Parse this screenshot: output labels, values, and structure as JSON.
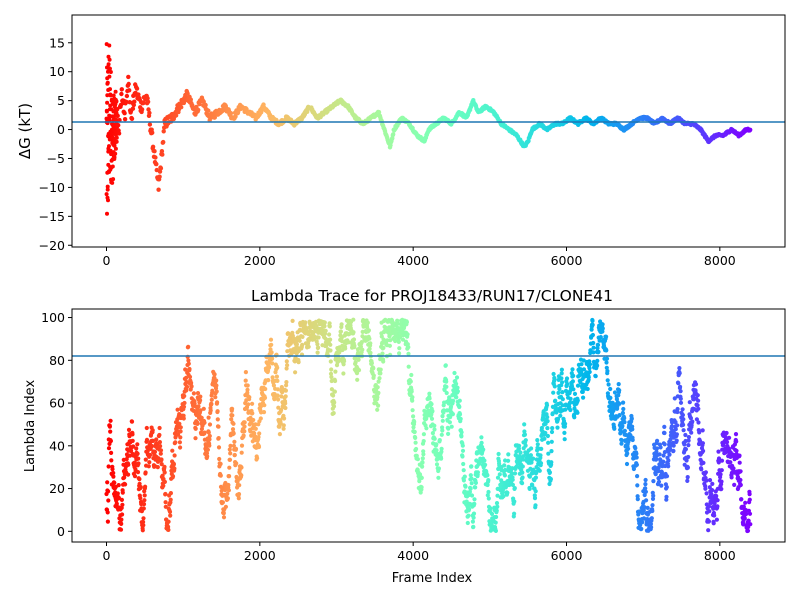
{
  "chart_data": [
    {
      "type": "scatter",
      "title": "",
      "xlabel": "",
      "ylabel": "ΔG (kT)",
      "xlim": [
        -450,
        8850
      ],
      "ylim": [
        -20.3,
        19.8
      ],
      "xticks": [
        0,
        2000,
        4000,
        6000,
        8000
      ],
      "yticks": [
        -20,
        -15,
        -10,
        -5,
        0,
        5,
        10,
        15
      ],
      "xtick_labels": [
        "0",
        "2000",
        "4000",
        "6000",
        "8000"
      ],
      "ytick_labels": [
        "−20",
        "−15",
        "−10",
        "−5",
        "0",
        "5",
        "10",
        "15"
      ],
      "reference_line": 1.3,
      "reference_color": "#1f77b4",
      "colormap": "rainbow (reversed: red at frame 0, violet at last frame)",
      "n_frames": 8400,
      "trace_keypoints": {
        "x": [
          0,
          40,
          80,
          120,
          160,
          200,
          240,
          280,
          320,
          380,
          450,
          520,
          600,
          680,
          760,
          850,
          950,
          1050,
          1150,
          1250,
          1350,
          1450,
          1550,
          1650,
          1750,
          1850,
          1950,
          2050,
          2150,
          2250,
          2350,
          2450,
          2550,
          2650,
          2750,
          2850,
          2950,
          3050,
          3150,
          3250,
          3350,
          3450,
          3550,
          3650,
          3700,
          3750,
          3850,
          3950,
          4050,
          4150,
          4200,
          4300,
          4400,
          4500,
          4600,
          4700,
          4780,
          4850,
          4950,
          5050,
          5150,
          5250,
          5350,
          5450,
          5500,
          5550,
          5650,
          5750,
          5850,
          5950,
          6050,
          6150,
          6250,
          6350,
          6450,
          6550,
          6650,
          6750,
          6850,
          6950,
          7050,
          7150,
          7250,
          7350,
          7450,
          7550,
          7650,
          7750,
          7850,
          7950,
          8050,
          8150,
          8250,
          8350,
          8400
        ],
        "y": [
          -20,
          16,
          -10,
          8,
          0,
          6,
          3,
          9,
          2,
          7,
          4,
          6,
          -2,
          -10,
          1,
          2,
          4,
          6,
          3,
          5,
          2,
          3,
          4,
          2,
          4,
          3,
          2,
          4,
          2,
          1,
          2,
          1,
          2,
          4,
          2,
          3,
          4,
          5,
          4,
          2,
          1,
          2,
          3,
          -1,
          -3,
          0,
          2,
          1,
          -1,
          -2,
          0,
          1,
          2,
          1,
          3,
          2,
          5,
          3,
          4,
          3,
          1,
          0,
          -1,
          -3,
          -2,
          0,
          1,
          0,
          1,
          1,
          2,
          1,
          2,
          1,
          2,
          1,
          1,
          0,
          1,
          2,
          2,
          1,
          2,
          1,
          2,
          1,
          1,
          0,
          -2,
          -1,
          -1,
          0,
          -1,
          0,
          0
        ]
      }
    },
    {
      "type": "scatter",
      "title": "Lambda Trace for PROJ18433/RUN17/CLONE41",
      "xlabel": "Frame Index",
      "ylabel": "Lambda Index",
      "xlim": [
        -450,
        8850
      ],
      "ylim": [
        -5,
        104
      ],
      "xticks": [
        0,
        2000,
        4000,
        6000,
        8000
      ],
      "yticks": [
        0,
        20,
        40,
        60,
        80,
        100
      ],
      "xtick_labels": [
        "0",
        "2000",
        "4000",
        "6000",
        "8000"
      ],
      "ytick_labels": [
        "0",
        "20",
        "40",
        "60",
        "80",
        "100"
      ],
      "reference_line": 82,
      "reference_color": "#1f77b4",
      "colormap": "rainbow (reversed: red at frame 0, violet at last frame)",
      "n_frames": 8400,
      "value_range": [
        0,
        99
      ],
      "description_points": "dense random-walk samples of lambda index 0–99 for every frame"
    }
  ]
}
